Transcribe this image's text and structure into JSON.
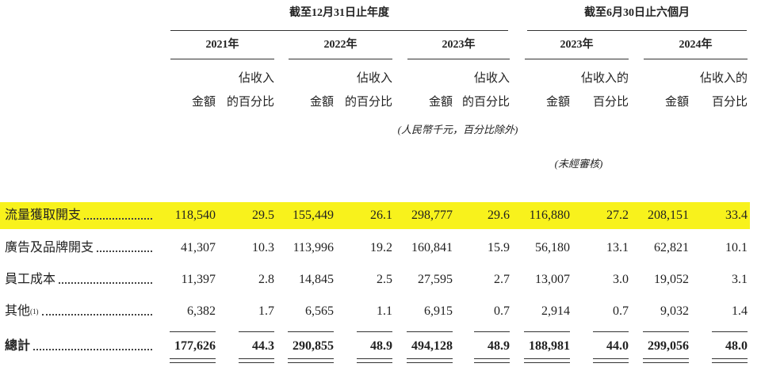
{
  "header": {
    "groups": [
      "截至12月31日止年度",
      "截至6月30日止六個月"
    ],
    "years": [
      "2021年",
      "2022年",
      "2023年",
      "2023年",
      "2024年"
    ],
    "columns": [
      [
        "金額"
      ],
      [
        "佔收入",
        "的百分比"
      ],
      [
        "金額"
      ],
      [
        "佔收入",
        "的百分比"
      ],
      [
        "金額"
      ],
      [
        "佔收入",
        "的百分比"
      ],
      [
        "金額"
      ],
      [
        "佔收入的",
        "百分比"
      ],
      [
        "金額"
      ],
      [
        "佔收入的",
        "百分比"
      ]
    ],
    "currency_note": "(人民幣千元，百分比除外)",
    "unaudited_note": "(未經審核)"
  },
  "table": {
    "rows": [
      {
        "label": "流量獲取開支",
        "cells": [
          "118,540",
          "29.5",
          "155,449",
          "26.1",
          "298,777",
          "29.6",
          "116,880",
          "27.2",
          "208,151",
          "33.4"
        ]
      },
      {
        "label": "廣告及品牌開支",
        "cells": [
          "41,307",
          "10.3",
          "113,996",
          "19.2",
          "160,841",
          "15.9",
          "56,180",
          "13.1",
          "62,821",
          "10.1"
        ]
      },
      {
        "label": "員工成本",
        "cells": [
          "11,397",
          "2.8",
          "14,845",
          "2.5",
          "27,595",
          "2.7",
          "13,007",
          "3.0",
          "19,052",
          "3.1"
        ]
      },
      {
        "label": "其他",
        "footnote": "(1)",
        "cells": [
          "6,382",
          "1.7",
          "6,565",
          "1.1",
          "6,915",
          "0.7",
          "2,914",
          "0.7",
          "9,032",
          "1.4"
        ]
      },
      {
        "label": "總計",
        "cells": [
          "177,626",
          "44.3",
          "290,855",
          "48.9",
          "494,128",
          "48.9",
          "188,981",
          "44.0",
          "299,056",
          "48.0"
        ]
      }
    ]
  }
}
